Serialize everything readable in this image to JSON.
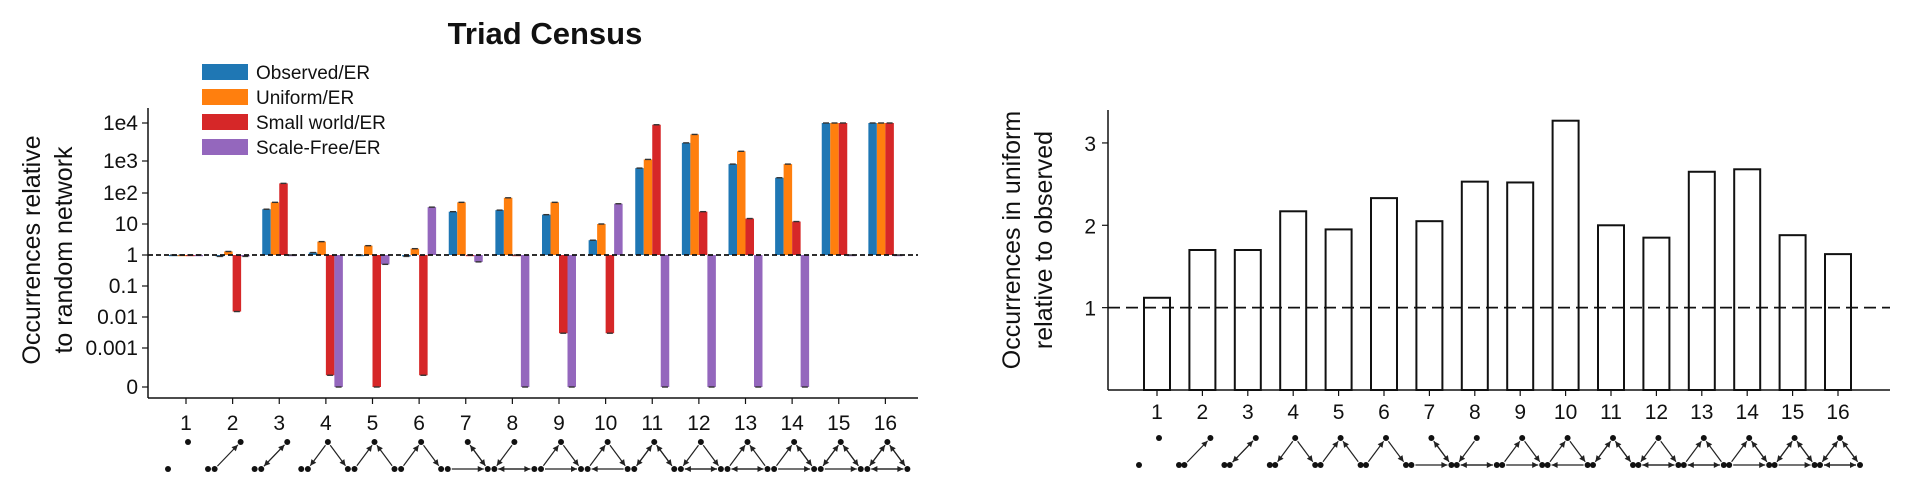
{
  "chart_data": [
    {
      "type": "bar",
      "title": "Triad Census",
      "xlabel": "",
      "ylabel": "Occurrences relative to random network",
      "ylabel_lines": [
        "Occurrences relative",
        "to random network"
      ],
      "yscale": "log",
      "yticks": [
        "1e4",
        "1e3",
        "1e2",
        "10",
        "1",
        "0.1",
        "0.01",
        "0.001",
        "0"
      ],
      "ytick_values": [
        10000,
        1000,
        100,
        10,
        1,
        0.1,
        0.01,
        0.001,
        0.0001
      ],
      "reference_line": 1,
      "legend_position": "top-left",
      "categories": [
        "1",
        "2",
        "3",
        "4",
        "5",
        "6",
        "7",
        "8",
        "9",
        "10",
        "11",
        "12",
        "13",
        "14",
        "15",
        "16"
      ],
      "series": [
        {
          "name": "Observed/ER",
          "color": "#1f77b4",
          "values": [
            1,
            0.9,
            30,
            1.2,
            1,
            0.9,
            25,
            28,
            20,
            3,
            600,
            3000,
            800,
            300,
            10000,
            10000
          ]
        },
        {
          "name": "Uniform/ER",
          "color": "#ff7f0e",
          "values": [
            1,
            1.3,
            50,
            2.7,
            2,
            1.6,
            50,
            70,
            50,
            10,
            1100,
            5000,
            1800,
            800,
            10000,
            10000
          ]
        },
        {
          "name": "Small world/ER",
          "color": "#d62728",
          "values": [
            1,
            0.015,
            200,
            0.0002,
            0.0001,
            0.0002,
            1,
            1,
            0.003,
            0.003,
            9000,
            25,
            15,
            12,
            10000,
            10000
          ]
        },
        {
          "name": "Scale-Free/ER",
          "color": "#9467bd",
          "values": [
            1,
            0.9,
            1,
            0.0001,
            0.5,
            35,
            0.6,
            0.0001,
            0.0001,
            45,
            0.0001,
            0.0001,
            0.0001,
            0.0001,
            1,
            1
          ]
        }
      ]
    },
    {
      "type": "bar",
      "title": "",
      "xlabel": "",
      "ylabel": "Occurrences in uniform relative to observed",
      "ylabel_lines": [
        "Occurrences in uniform",
        "relative to observed"
      ],
      "yticks": [
        "1",
        "2",
        "3"
      ],
      "ytick_values": [
        1,
        2,
        3
      ],
      "ylim": [
        0.0,
        3.4
      ],
      "reference_line": 1,
      "categories": [
        "1",
        "2",
        "3",
        "4",
        "5",
        "6",
        "7",
        "8",
        "9",
        "10",
        "11",
        "12",
        "13",
        "14",
        "15",
        "16"
      ],
      "values": [
        1.12,
        1.7,
        1.7,
        2.17,
        1.95,
        2.33,
        2.05,
        2.53,
        2.52,
        3.27,
        2.0,
        1.85,
        2.65,
        2.68,
        1.88,
        1.65
      ]
    }
  ]
}
